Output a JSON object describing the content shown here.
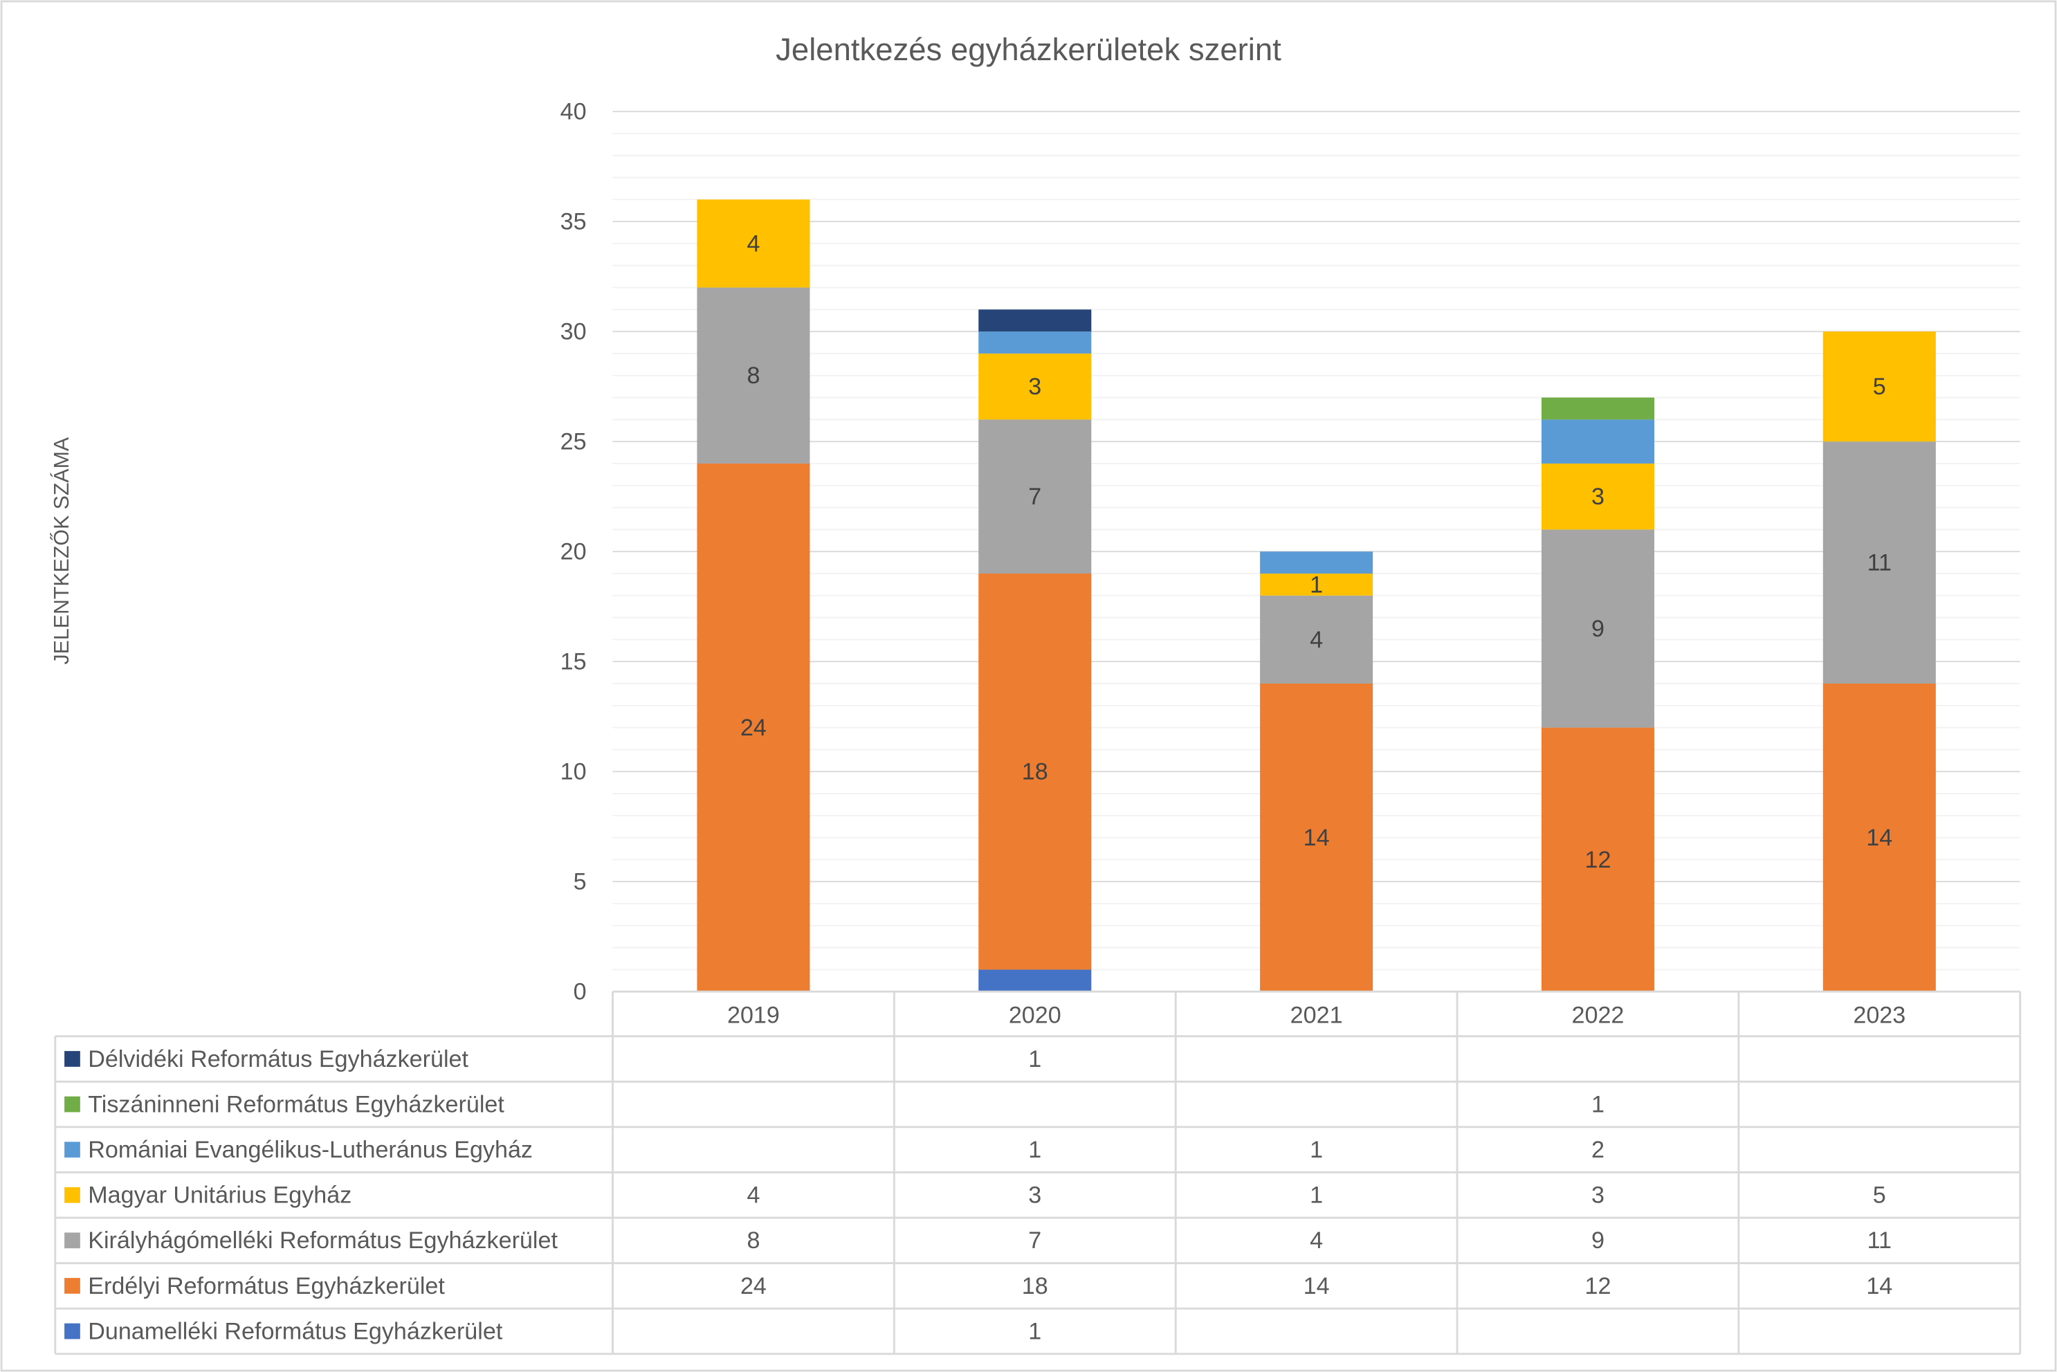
{
  "chart_data": {
    "type": "bar",
    "stacked": true,
    "title": "Jelentkezés egyházkerületek szerint",
    "xlabel": "",
    "ylabel": "JELENTKEZŐK SZÁMA",
    "ylim": [
      0,
      40
    ],
    "yticks": [
      0,
      5,
      10,
      15,
      20,
      25,
      30,
      35,
      40
    ],
    "grid": true,
    "legend": "data-table",
    "categories": [
      "2019",
      "2020",
      "2021",
      "2022",
      "2023"
    ],
    "series": [
      {
        "name": "Dunamelléki Református Egyházkerület",
        "color": "#4472C4",
        "values": [
          null,
          1,
          null,
          null,
          null
        ],
        "labels": false
      },
      {
        "name": "Erdélyi Református Egyházkerület",
        "color": "#ED7D31",
        "values": [
          24,
          18,
          14,
          12,
          14
        ],
        "labels": true
      },
      {
        "name": "Királyhágómelléki Református Egyházkerület",
        "color": "#A5A5A5",
        "values": [
          8,
          7,
          4,
          9,
          11
        ],
        "labels": true
      },
      {
        "name": "Magyar Unitárius Egyház",
        "color": "#FFC000",
        "values": [
          4,
          3,
          1,
          3,
          5
        ],
        "labels": true
      },
      {
        "name": "Romániai Evangélikus-Lutheránus Egyház",
        "color": "#5B9BD5",
        "values": [
          null,
          1,
          1,
          2,
          null
        ],
        "labels": false
      },
      {
        "name": "Tiszáninneni Református Egyházkerület",
        "color": "#70AD47",
        "values": [
          null,
          null,
          null,
          1,
          null
        ],
        "labels": false
      },
      {
        "name": "Délvidéki Református Egyházkerület",
        "color": "#264478",
        "values": [
          null,
          1,
          null,
          null,
          null
        ],
        "labels": false
      }
    ]
  }
}
